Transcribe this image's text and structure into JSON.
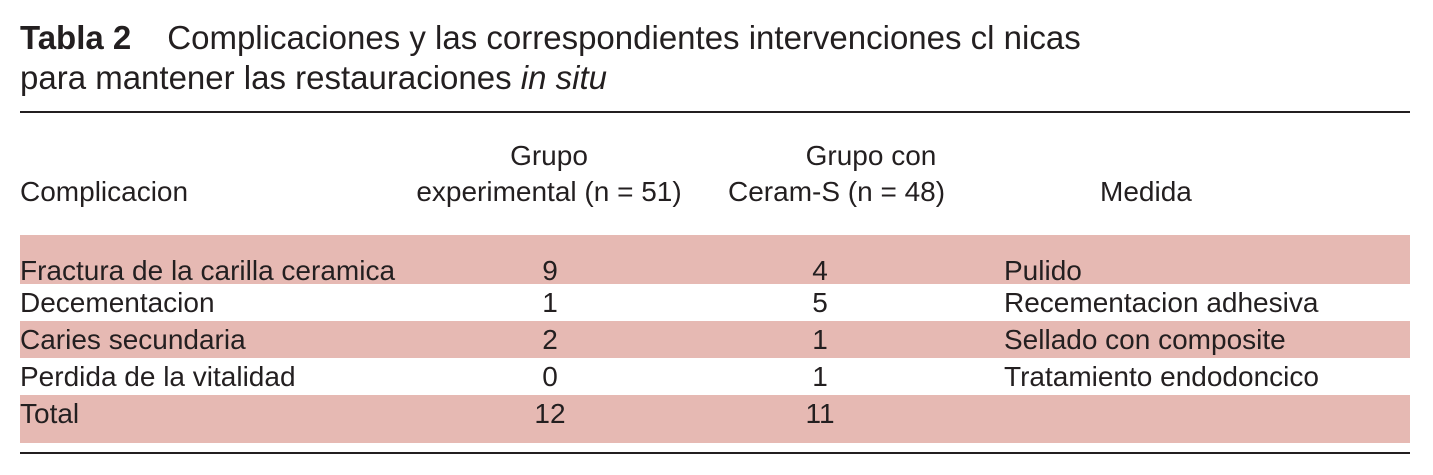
{
  "caption": {
    "label": "Tabla 2",
    "line1": "Complicaciones y las correspondientes intervenciones cl nicas",
    "line2_text": "para mantener las restauraciones ",
    "line2_italic": "in situ"
  },
  "table": {
    "headers": {
      "complicacion": "Complicacion",
      "grupo_experimental_line1": "Grupo",
      "grupo_experimental_line2": "experimental (n = 51)",
      "grupo_ceram_line1": "Grupo con",
      "grupo_ceram_line2": "Ceram-S (n = 48)",
      "medida": "Medida"
    },
    "rows": [
      {
        "complicacion": "Fractura de la carilla ceramica",
        "experimental": "9",
        "ceram_s": "4",
        "medida": "Pulido"
      },
      {
        "complicacion": "Decementacion",
        "experimental": "1",
        "ceram_s": "5",
        "medida": "Recementacion adhesiva"
      },
      {
        "complicacion": "Caries secundaria",
        "experimental": "2",
        "ceram_s": "1",
        "medida": "Sellado con composite"
      },
      {
        "complicacion": "Perdida de la vitalidad",
        "experimental": "0",
        "ceram_s": "1",
        "medida": "Tratamiento endodoncico"
      },
      {
        "complicacion": "Total",
        "experimental": "12",
        "ceram_s": "11",
        "medida": ""
      }
    ]
  },
  "colors": {
    "row_shading": "#e6b9b3",
    "text": "#231f20"
  }
}
